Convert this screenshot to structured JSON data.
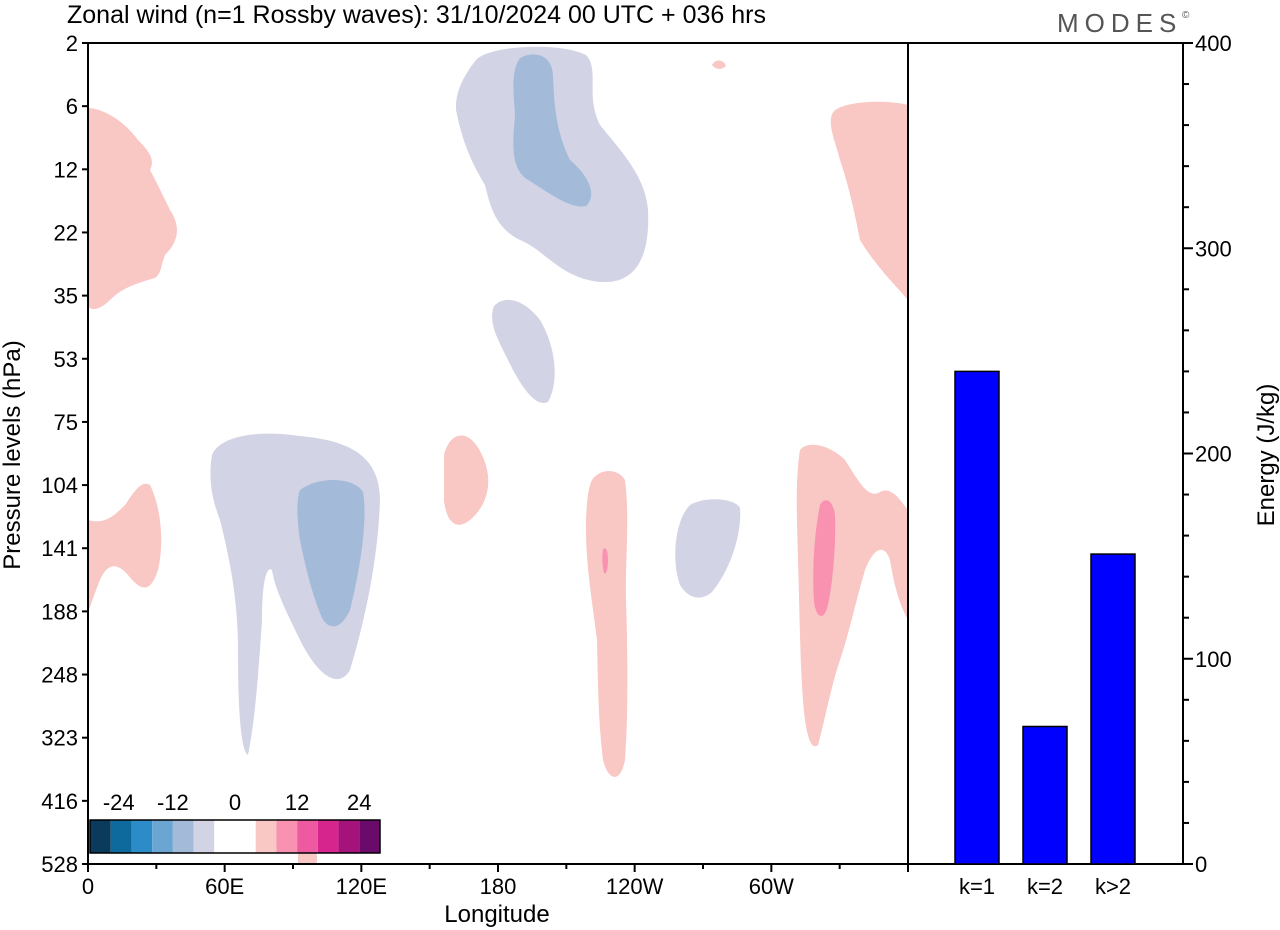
{
  "title": "Zonal wind (n=1 Rossby waves):  31/10/2024  00 UTC  + 036 hrs",
  "brand": "MODES",
  "brand_mark": "©",
  "colors": {
    "frame": "#000000",
    "bar_fill": "#0000ff",
    "neg_light": "#d3d3e6",
    "neg_mid": "#a3bbd9",
    "pos_light": "#f9c7c4",
    "pos_mid": "#f992b0"
  },
  "contour_chart": {
    "type": "heatmap",
    "xlabel": "Longitude",
    "ylabel": "Pressure levels (hPa)",
    "x_ticks": [
      "0",
      "60E",
      "120E",
      "180",
      "120W",
      "60W"
    ],
    "y_ticks": [
      "2",
      "6",
      "12",
      "22",
      "35",
      "53",
      "75",
      "104",
      "141",
      "188",
      "248",
      "323",
      "416",
      "528"
    ],
    "colorbar": {
      "labels": [
        "-24",
        "-12",
        "0",
        "12",
        "24"
      ],
      "colors": [
        "#0b3b5c",
        "#0e6a9c",
        "#2b8cc8",
        "#6aa6d1",
        "#a3bbd9",
        "#d3d3e6",
        "#ffffff",
        "#ffffff",
        "#f9c7c4",
        "#f992b0",
        "#ee5aa0",
        "#d6258c",
        "#a4137a",
        "#6a0a6a"
      ]
    }
  },
  "chart_data": {
    "type": "bar",
    "categories": [
      "k=1",
      "k=2",
      "k>2"
    ],
    "values": [
      240,
      67,
      151
    ],
    "ylabel": "Energy (J/kg)",
    "ylim": [
      0,
      400
    ],
    "y_ticks": [
      "0",
      "100",
      "200",
      "300",
      "400"
    ]
  }
}
